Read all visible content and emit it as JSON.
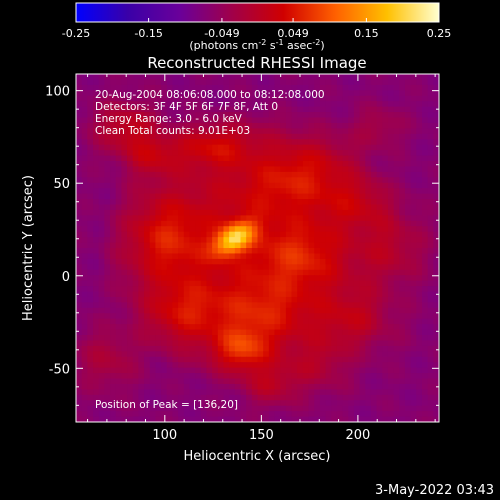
{
  "chart_data": {
    "type": "heatmap",
    "title": "Reconstructed RHESSI Image",
    "xlabel": "Heliocentric X (arcsec)",
    "ylabel": "Heliocentric Y (arcsec)",
    "xlim": [
      54,
      242
    ],
    "ylim": [
      -79,
      109
    ],
    "xticks": [
      100,
      150,
      200
    ],
    "yticks": [
      -50,
      0,
      50,
      100
    ],
    "grid": false,
    "colorbar": {
      "position": "top",
      "range": [
        -0.25,
        0.25
      ],
      "ticks": [
        "-0.25",
        "-0.15",
        "-0.049",
        "0.049",
        "0.15",
        "0.25"
      ],
      "unit_text": "(photons cm",
      "unit_sup1": "-2",
      "unit_mid1": " s",
      "unit_sup2": "-1",
      "unit_mid2": " asec",
      "unit_sup3": "-2",
      "unit_end": ")"
    },
    "annotations": [
      "20-Aug-2004 08:06:08.000 to 08:12:08.000",
      "Detectors: 3F 4F 5F 6F 7F 8F, Att 0",
      "Energy Range: 3.0 - 6.0 keV",
      "Clean     Total counts: 9.01E+03"
    ],
    "peak_label": "Position of Peak = [136,20]",
    "peak": {
      "x": 136,
      "y": 20,
      "value": 0.25
    },
    "blobs": [
      {
        "x": 136,
        "y": 20,
        "sx": 8,
        "sy": 5,
        "rot": 35,
        "v": 0.2
      },
      {
        "x": 80,
        "y": 80,
        "sx": 12,
        "sy": 10,
        "rot": 0,
        "v": 0.08
      },
      {
        "x": 92,
        "y": 65,
        "sx": 10,
        "sy": 8,
        "rot": 0,
        "v": 0.06
      },
      {
        "x": 125,
        "y": 70,
        "sx": 15,
        "sy": 8,
        "rot": 0,
        "v": 0.07
      },
      {
        "x": 170,
        "y": 55,
        "sx": 20,
        "sy": 12,
        "rot": 20,
        "v": 0.065
      },
      {
        "x": 200,
        "y": 40,
        "sx": 14,
        "sy": 10,
        "rot": 0,
        "v": 0.05
      },
      {
        "x": 220,
        "y": 15,
        "sx": 12,
        "sy": 14,
        "rot": 0,
        "v": 0.055
      },
      {
        "x": 170,
        "y": 10,
        "sx": 15,
        "sy": 12,
        "rot": 0,
        "v": 0.06
      },
      {
        "x": 100,
        "y": 20,
        "sx": 14,
        "sy": 15,
        "rot": 0,
        "v": 0.07
      },
      {
        "x": 110,
        "y": -20,
        "sx": 14,
        "sy": 12,
        "rot": 0,
        "v": 0.065
      },
      {
        "x": 150,
        "y": -20,
        "sx": 16,
        "sy": 12,
        "rot": 0,
        "v": 0.06
      },
      {
        "x": 200,
        "y": -25,
        "sx": 15,
        "sy": 12,
        "rot": 0,
        "v": 0.055
      },
      {
        "x": 140,
        "y": -40,
        "sx": 10,
        "sy": 8,
        "rot": 0,
        "v": 0.1
      },
      {
        "x": 70,
        "y": -45,
        "sx": 12,
        "sy": 12,
        "rot": 0,
        "v": 0.05
      },
      {
        "x": 155,
        "y": -60,
        "sx": 10,
        "sy": 8,
        "rot": 0,
        "v": 0.06
      },
      {
        "x": 180,
        "y": -50,
        "sx": 12,
        "sy": 10,
        "rot": 0,
        "v": 0.045
      },
      {
        "x": 210,
        "y": 80,
        "sx": 10,
        "sy": 8,
        "rot": 0,
        "v": 0.04
      }
    ],
    "background": {
      "edge": -0.07,
      "center": 0.015,
      "cx": 145,
      "cy": 15,
      "r": 80
    },
    "colors": {
      "stops": [
        "#0000ff",
        "#3a00a8",
        "#6a009a",
        "#a0004a",
        "#d00000",
        "#ff6000",
        "#ffc000",
        "#ffffd0"
      ],
      "axes": "#ffffff",
      "background": "#000000"
    }
  },
  "footer": {
    "timestamp": "3-May-2022 03:43"
  }
}
